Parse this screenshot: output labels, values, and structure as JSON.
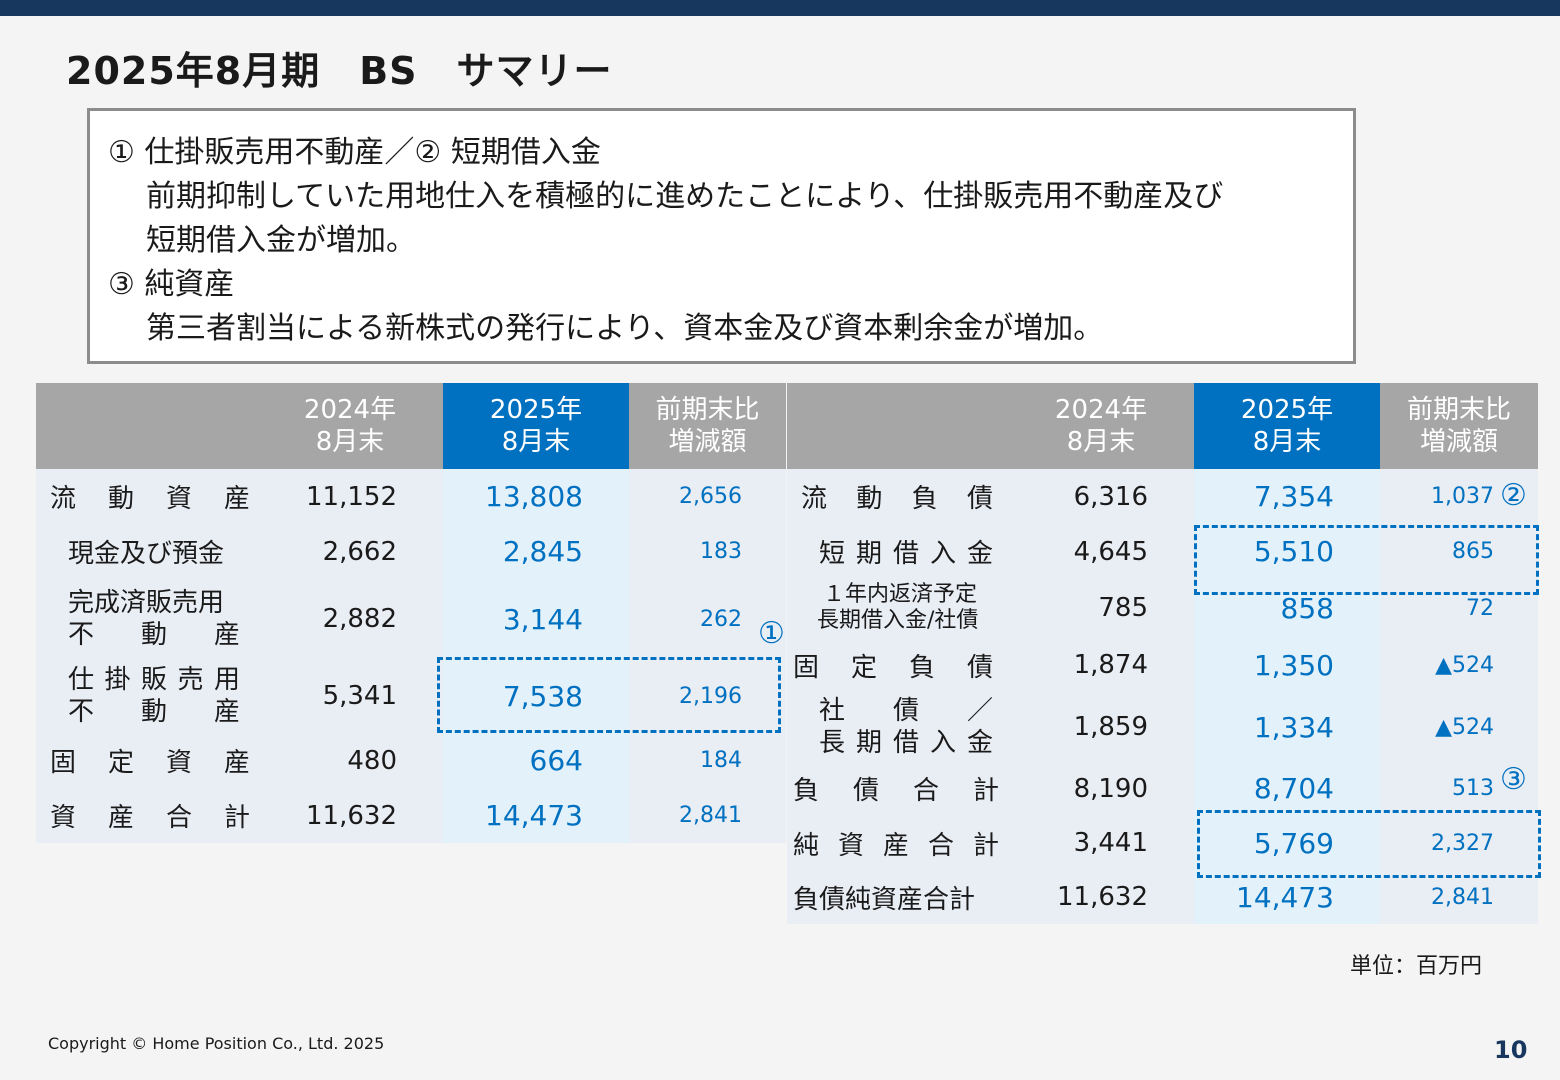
{
  "title": "2025年8月期　BS　サマリー",
  "notes": {
    "h1": "① 仕掛販売用不動産／② 短期借入金",
    "b1a": "前期抑制していた用地仕入を積極的に進めたことにより、仕掛販売用不動産及び",
    "b1b": "短期借入金が増加。",
    "h2": "③ 純資産",
    "b2": "第三者割当による新株式の発行により、資本金及び資本剰余金が増加。"
  },
  "headers": {
    "prev_a": "2024年",
    "prev_b": "8月末",
    "cur_a": "2025年",
    "cur_b": "8月末",
    "diff_a": "前期末比",
    "diff_b": "増減額"
  },
  "assets": [
    {
      "c": [
        "流",
        "動",
        "資",
        "産"
      ],
      "prev": "11,152",
      "cur": "13,808",
      "diff": "2,656"
    },
    {
      "label": "現金及び預金",
      "prev": "2,662",
      "cur": "2,845",
      "diff": "183"
    },
    {
      "l1": "完成済販売用",
      "c2": [
        "不",
        "動",
        "産"
      ],
      "prev": "2,882",
      "cur": "3,144",
      "diff": "262"
    },
    {
      "c1": [
        "仕",
        "掛",
        "販",
        "売",
        "用"
      ],
      "c2": [
        "不",
        "動",
        "産"
      ],
      "prev": "5,341",
      "cur": "7,538",
      "diff": "2,196"
    },
    {
      "c": [
        "固",
        "定",
        "資",
        "産"
      ],
      "prev": "480",
      "cur": "664",
      "diff": "184"
    },
    {
      "c": [
        "資",
        "産",
        "合",
        "計"
      ],
      "prev": "11,632",
      "cur": "14,473",
      "diff": "2,841"
    }
  ],
  "liabilities": [
    {
      "c": [
        "流",
        "動",
        "負",
        "債"
      ],
      "prev": "6,316",
      "cur": "7,354",
      "diff": "1,037"
    },
    {
      "c": [
        "短",
        "期",
        "借",
        "入",
        "金"
      ],
      "prev": "4,645",
      "cur": "5,510",
      "diff": "865"
    },
    {
      "l1": "１年内返済予定",
      "l2": "長期借入金/社債",
      "prev": "785",
      "cur": "858",
      "diff": "72"
    },
    {
      "c": [
        "固",
        "定",
        "負",
        "債"
      ],
      "prev": "1,874",
      "cur": "1,350",
      "diff": "▲524"
    },
    {
      "c1": [
        "社",
        "債",
        "／"
      ],
      "c2": [
        "長",
        "期",
        "借",
        "入",
        "金"
      ],
      "prev": "1,859",
      "cur": "1,334",
      "diff": "▲524"
    },
    {
      "c": [
        "負",
        "債",
        "合",
        "計"
      ],
      "prev": "8,190",
      "cur": "8,704",
      "diff": "513"
    },
    {
      "c": [
        "純",
        "資",
        "産",
        "合",
        "計"
      ],
      "prev": "3,441",
      "cur": "5,769",
      "diff": "2,327"
    },
    {
      "label": "負債純資産合計",
      "prev": "11,632",
      "cur": "14,473",
      "diff": "2,841"
    }
  ],
  "markers": {
    "m1": "①",
    "m2": "②",
    "m3": "③"
  },
  "unit": "単位：百万円",
  "copyright": "Copyright © Home Position Co., Ltd. 2025",
  "page": "10",
  "colors": {
    "navy": "#17375e",
    "accent": "#0070c0",
    "header_gray": "#a6a6a6"
  }
}
